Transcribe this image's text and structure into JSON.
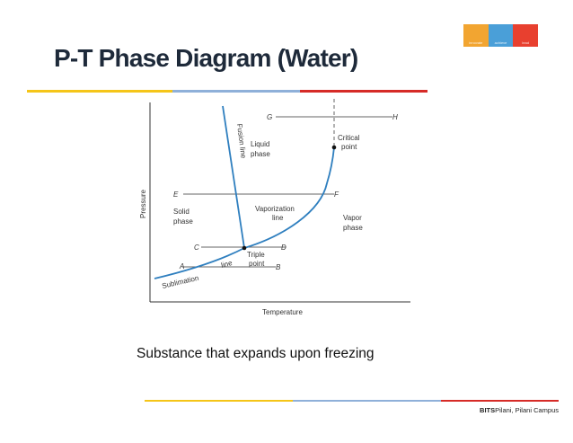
{
  "slide": {
    "title": "P-T Phase Diagram (Water)",
    "caption": "Substance that expands upon freezing",
    "footer": {
      "brand": "BITS",
      "campus": "Pilani, Pilani Campus"
    },
    "accent_colors": {
      "yellow": "#f5c518",
      "blue": "#8fb0d9",
      "red": "#d62b27",
      "title": "#1e2a3a"
    },
    "logo": {
      "segments": [
        {
          "label": "innovate",
          "color": "#f2a531"
        },
        {
          "label": "achieve",
          "color": "#4a9fd8"
        },
        {
          "label": "lead",
          "color": "#e8402f"
        }
      ]
    }
  },
  "diagram": {
    "axes": {
      "x": "Temperature",
      "y": "Pressure"
    },
    "regions": {
      "liquid": [
        "Liquid",
        "phase"
      ],
      "solid": [
        "Solid",
        "phase"
      ],
      "vapor": [
        "Vapor",
        "phase"
      ]
    },
    "curves": {
      "fusion": "Fusion line",
      "vaporization": [
        "Vaporization",
        "line"
      ],
      "sublimation_a": "Sublimation",
      "sublimation_b": "line"
    },
    "points": {
      "critical": [
        "Critical",
        "point"
      ],
      "triple": [
        "Triple",
        "point"
      ]
    },
    "letters": {
      "A": "A",
      "B": "B",
      "C": "C",
      "D": "D",
      "E": "E",
      "F": "F",
      "G": "G",
      "H": "H"
    },
    "line_color": "#2f7fbf"
  }
}
